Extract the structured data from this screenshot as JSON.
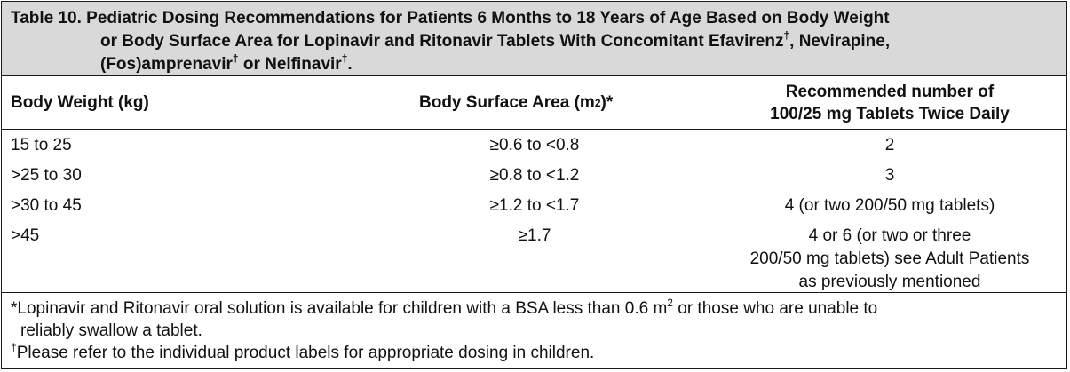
{
  "table": {
    "title_line1": "Table 10. Pediatric Dosing Recommendations for Patients 6 Months to 18 Years of Age Based on Body Weight",
    "title_line2a": "or Body Surface Area for Lopinavir and Ritonavir Tablets With Concomitant Efavirenz",
    "title_line2_sup": "†",
    "title_line2b": ", Nevirapine,",
    "title_line3a": "(Fos)amprenavir",
    "title_line3_sup1": "†",
    "title_line3b": " or Nelfinavir",
    "title_line3_sup2": "†",
    "title_line3c": ".",
    "headers": {
      "weight": "Body Weight (kg)",
      "bsa_a": "Body Surface Area (m",
      "bsa_sup": "2",
      "bsa_b": ")*",
      "rec_line1": "Recommended number of",
      "rec_line2": "100/25 mg Tablets Twice Daily"
    },
    "rows": [
      {
        "weight": "15 to 25",
        "bsa": "≥0.6 to <0.8",
        "rec": [
          "2"
        ]
      },
      {
        "weight": ">25 to 30",
        "bsa": "≥0.8 to <1.2",
        "rec": [
          "3"
        ]
      },
      {
        "weight": ">30 to 45",
        "bsa": "≥1.2 to <1.7",
        "rec": [
          "4 (or two 200/50 mg tablets)"
        ]
      },
      {
        "weight": ">45",
        "bsa": "≥1.7",
        "rec": [
          "4 or 6 (or two or three",
          "200/50 mg tablets) see Adult Patients",
          "as previously mentioned"
        ]
      }
    ],
    "footnotes": {
      "fn1_a": "*Lopinavir and Ritonavir oral solution is available for children with a BSA less than 0.6 m",
      "fn1_sup": "2",
      "fn1_b": " or those who are unable to",
      "fn1_line2": "reliably swallow a tablet.",
      "fn2_sup": "†",
      "fn2_text": "Please refer to the individual product labels for appropriate dosing in children."
    }
  }
}
